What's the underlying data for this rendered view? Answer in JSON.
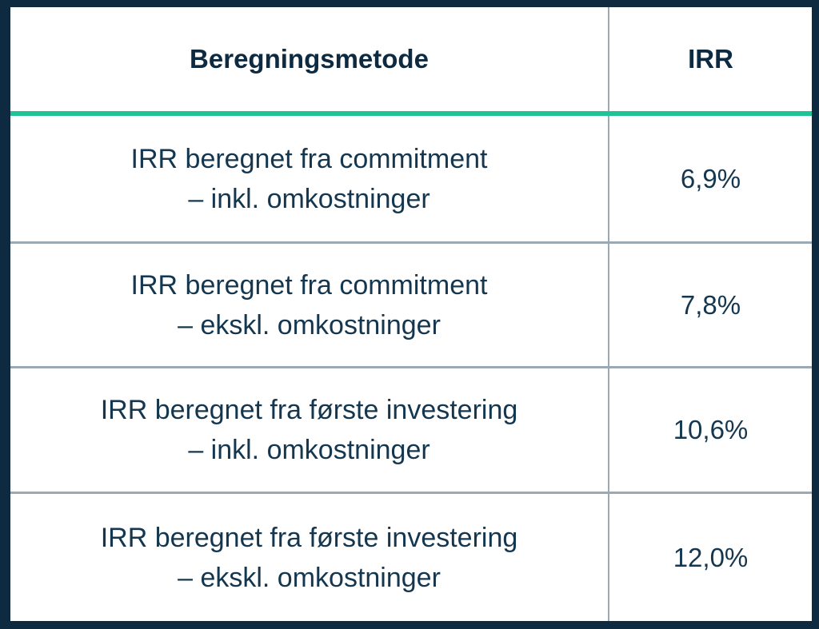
{
  "table": {
    "headers": [
      "Beregningsmetode",
      "IRR"
    ],
    "rows": [
      {
        "method_line1": "IRR beregnet fra commitment",
        "method_line2": "– inkl. omkostninger",
        "irr": "6,9%"
      },
      {
        "method_line1": "IRR beregnet fra commitment",
        "method_line2": "– ekskl. omkostninger",
        "irr": "7,8%"
      },
      {
        "method_line1": "IRR beregnet fra første investering",
        "method_line2": "– inkl. omkostninger",
        "irr": "10,6%"
      },
      {
        "method_line1": "IRR beregnet fra første investering",
        "method_line2": "– ekskl. omkostninger",
        "irr": "12,0%"
      }
    ],
    "colors": {
      "border": "#0d2a40",
      "accent": "#1ec495",
      "divider": "#9aa9b3",
      "text": "#14374f"
    }
  }
}
